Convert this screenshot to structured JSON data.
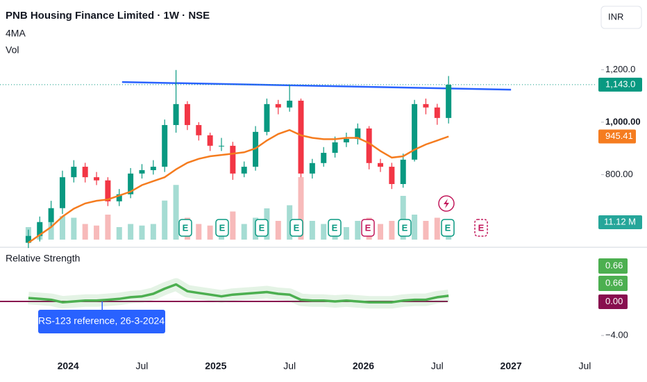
{
  "chart_data": [
    {
      "type": "candlestick",
      "title": "PNB Housing Finance Limited · 1W · NSE",
      "currency": "INR",
      "earnings_label": "E",
      "x": [
        -14,
        -10,
        -6,
        -2,
        2,
        6,
        10,
        14,
        18,
        22,
        26,
        30,
        34,
        38,
        42,
        46,
        50,
        54,
        58,
        62,
        66,
        70,
        74,
        78,
        82,
        86,
        90,
        94,
        98,
        102,
        106,
        110,
        114,
        118,
        122,
        126,
        130,
        134
      ],
      "open": [
        540,
        566,
        619,
        672,
        790,
        830,
        790,
        778,
        698,
        725,
        804,
        817,
        830,
        989,
        1069,
        989,
        950,
        910,
        910,
        804,
        830,
        963,
        1069,
        1056,
        1082,
        804,
        844,
        883,
        923,
        936,
        976,
        844,
        830,
        764,
        857,
        1069,
        1056,
        1016
      ],
      "high": [
        590,
        640,
        700,
        815,
        855,
        845,
        810,
        790,
        745,
        825,
        840,
        855,
        1010,
        1199,
        1080,
        1000,
        960,
        940,
        925,
        850,
        985,
        1090,
        1085,
        1143,
        1090,
        860,
        905,
        945,
        960,
        995,
        985,
        860,
        845,
        880,
        1085,
        1090,
        1070,
        1176
      ],
      "low": [
        520,
        545,
        600,
        650,
        770,
        770,
        760,
        680,
        680,
        710,
        785,
        800,
        810,
        960,
        970,
        930,
        890,
        890,
        780,
        790,
        815,
        950,
        1030,
        1040,
        790,
        785,
        830,
        865,
        905,
        915,
        820,
        810,
        745,
        750,
        850,
        1030,
        990,
        995
      ],
      "close": [
        566,
        619,
        672,
        790,
        830,
        790,
        778,
        698,
        725,
        804,
        817,
        830,
        989,
        1069,
        989,
        950,
        910,
        910,
        804,
        830,
        963,
        1069,
        1056,
        1082,
        804,
        844,
        883,
        923,
        936,
        976,
        844,
        830,
        764,
        857,
        1069,
        1056,
        1016,
        1143
      ],
      "up_color": "#089981",
      "down_color": "#f23645",
      "last_price": {
        "value": 1143,
        "label": "1,143.0"
      },
      "ma": {
        "name": "4MA",
        "color": "#f57c1f",
        "values": [
          540,
          570,
          600,
          640,
          670,
          690,
          700,
          705,
          720,
          735,
          760,
          775,
          790,
          820,
          845,
          860,
          870,
          875,
          880,
          885,
          900,
          930,
          955,
          970,
          950,
          940,
          935,
          935,
          940,
          940,
          920,
          890,
          865,
          870,
          895,
          915,
          930,
          945.41
        ]
      },
      "volume": {
        "name": "Vol",
        "up_color": "#8fd3c8",
        "down_color": "#f5a9a9",
        "label_color": "#26a69a",
        "values": [
          8,
          10,
          12,
          15,
          14,
          10,
          9,
          16,
          8,
          10,
          9,
          10,
          25,
          35,
          14,
          10,
          9,
          8,
          18,
          10,
          14,
          20,
          12,
          22,
          40,
          12,
          10,
          9,
          8,
          12,
          14,
          10,
          12,
          28,
          16,
          12,
          14,
          11.12
        ],
        "value_labels": [
          null,
          null,
          null,
          null,
          null,
          null,
          null,
          null,
          null,
          null,
          null,
          null,
          null,
          null,
          null,
          null,
          null,
          null,
          null,
          null,
          null,
          null,
          null,
          null,
          null,
          null,
          null,
          null,
          null,
          null,
          null,
          null,
          null,
          null,
          null,
          null,
          null,
          "11.12 M"
        ]
      },
      "trendline": {
        "color": "#2962ff",
        "x": [
          19,
          156
        ],
        "values": [
          1153,
          1124
        ]
      },
      "xlim": [
        -24,
        188
      ],
      "ylim": [
        552,
        1466
      ],
      "yticks": [
        {
          "value": 1200,
          "label": "1,200.0"
        },
        {
          "value": 1000,
          "label": "1,000.00"
        },
        {
          "value": 800,
          "label": "800.00"
        }
      ]
    },
    {
      "type": "line",
      "title": "Relative Strength",
      "color": "#4caf50",
      "x": [
        -14,
        -10,
        -6,
        -2,
        2,
        6,
        10,
        14,
        18,
        22,
        26,
        30,
        34,
        38,
        42,
        46,
        50,
        54,
        58,
        62,
        66,
        70,
        74,
        78,
        82,
        86,
        90,
        94,
        98,
        102,
        106,
        110,
        114,
        118,
        122,
        126,
        130,
        134
      ],
      "values": [
        0.4,
        0.3,
        0.2,
        -0.1,
        0.0,
        0.1,
        0.1,
        0.2,
        0.3,
        0.5,
        0.6,
        0.9,
        1.5,
        2.0,
        1.2,
        1.0,
        0.8,
        0.6,
        0.8,
        0.9,
        1.0,
        1.1,
        0.9,
        0.8,
        0.2,
        0.1,
        0.1,
        0.0,
        0.1,
        0.0,
        -0.1,
        -0.1,
        -0.1,
        0.1,
        0.2,
        0.2,
        0.5,
        0.66
      ],
      "baseline": {
        "value": 0,
        "label": "0.00",
        "color": "#880e4f"
      },
      "annotation": {
        "text": "RS-123 reference, 26-3-2024",
        "x": 12
      },
      "xlim": [
        -24,
        188
      ],
      "ylim": [
        -6.2,
        6.04
      ],
      "yticks": [
        {
          "value": -4,
          "label": "−4.00"
        }
      ],
      "xticks": [
        {
          "value": 0,
          "label": "2024"
        },
        {
          "value": 26,
          "label": "Jul"
        },
        {
          "value": 52,
          "label": "2025"
        },
        {
          "value": 78,
          "label": "Jul"
        },
        {
          "value": 104,
          "label": "2026"
        },
        {
          "value": 130,
          "label": "Jul"
        },
        {
          "value": 156,
          "label": "2027"
        },
        {
          "value": 182,
          "label": "Jul"
        }
      ]
    }
  ]
}
